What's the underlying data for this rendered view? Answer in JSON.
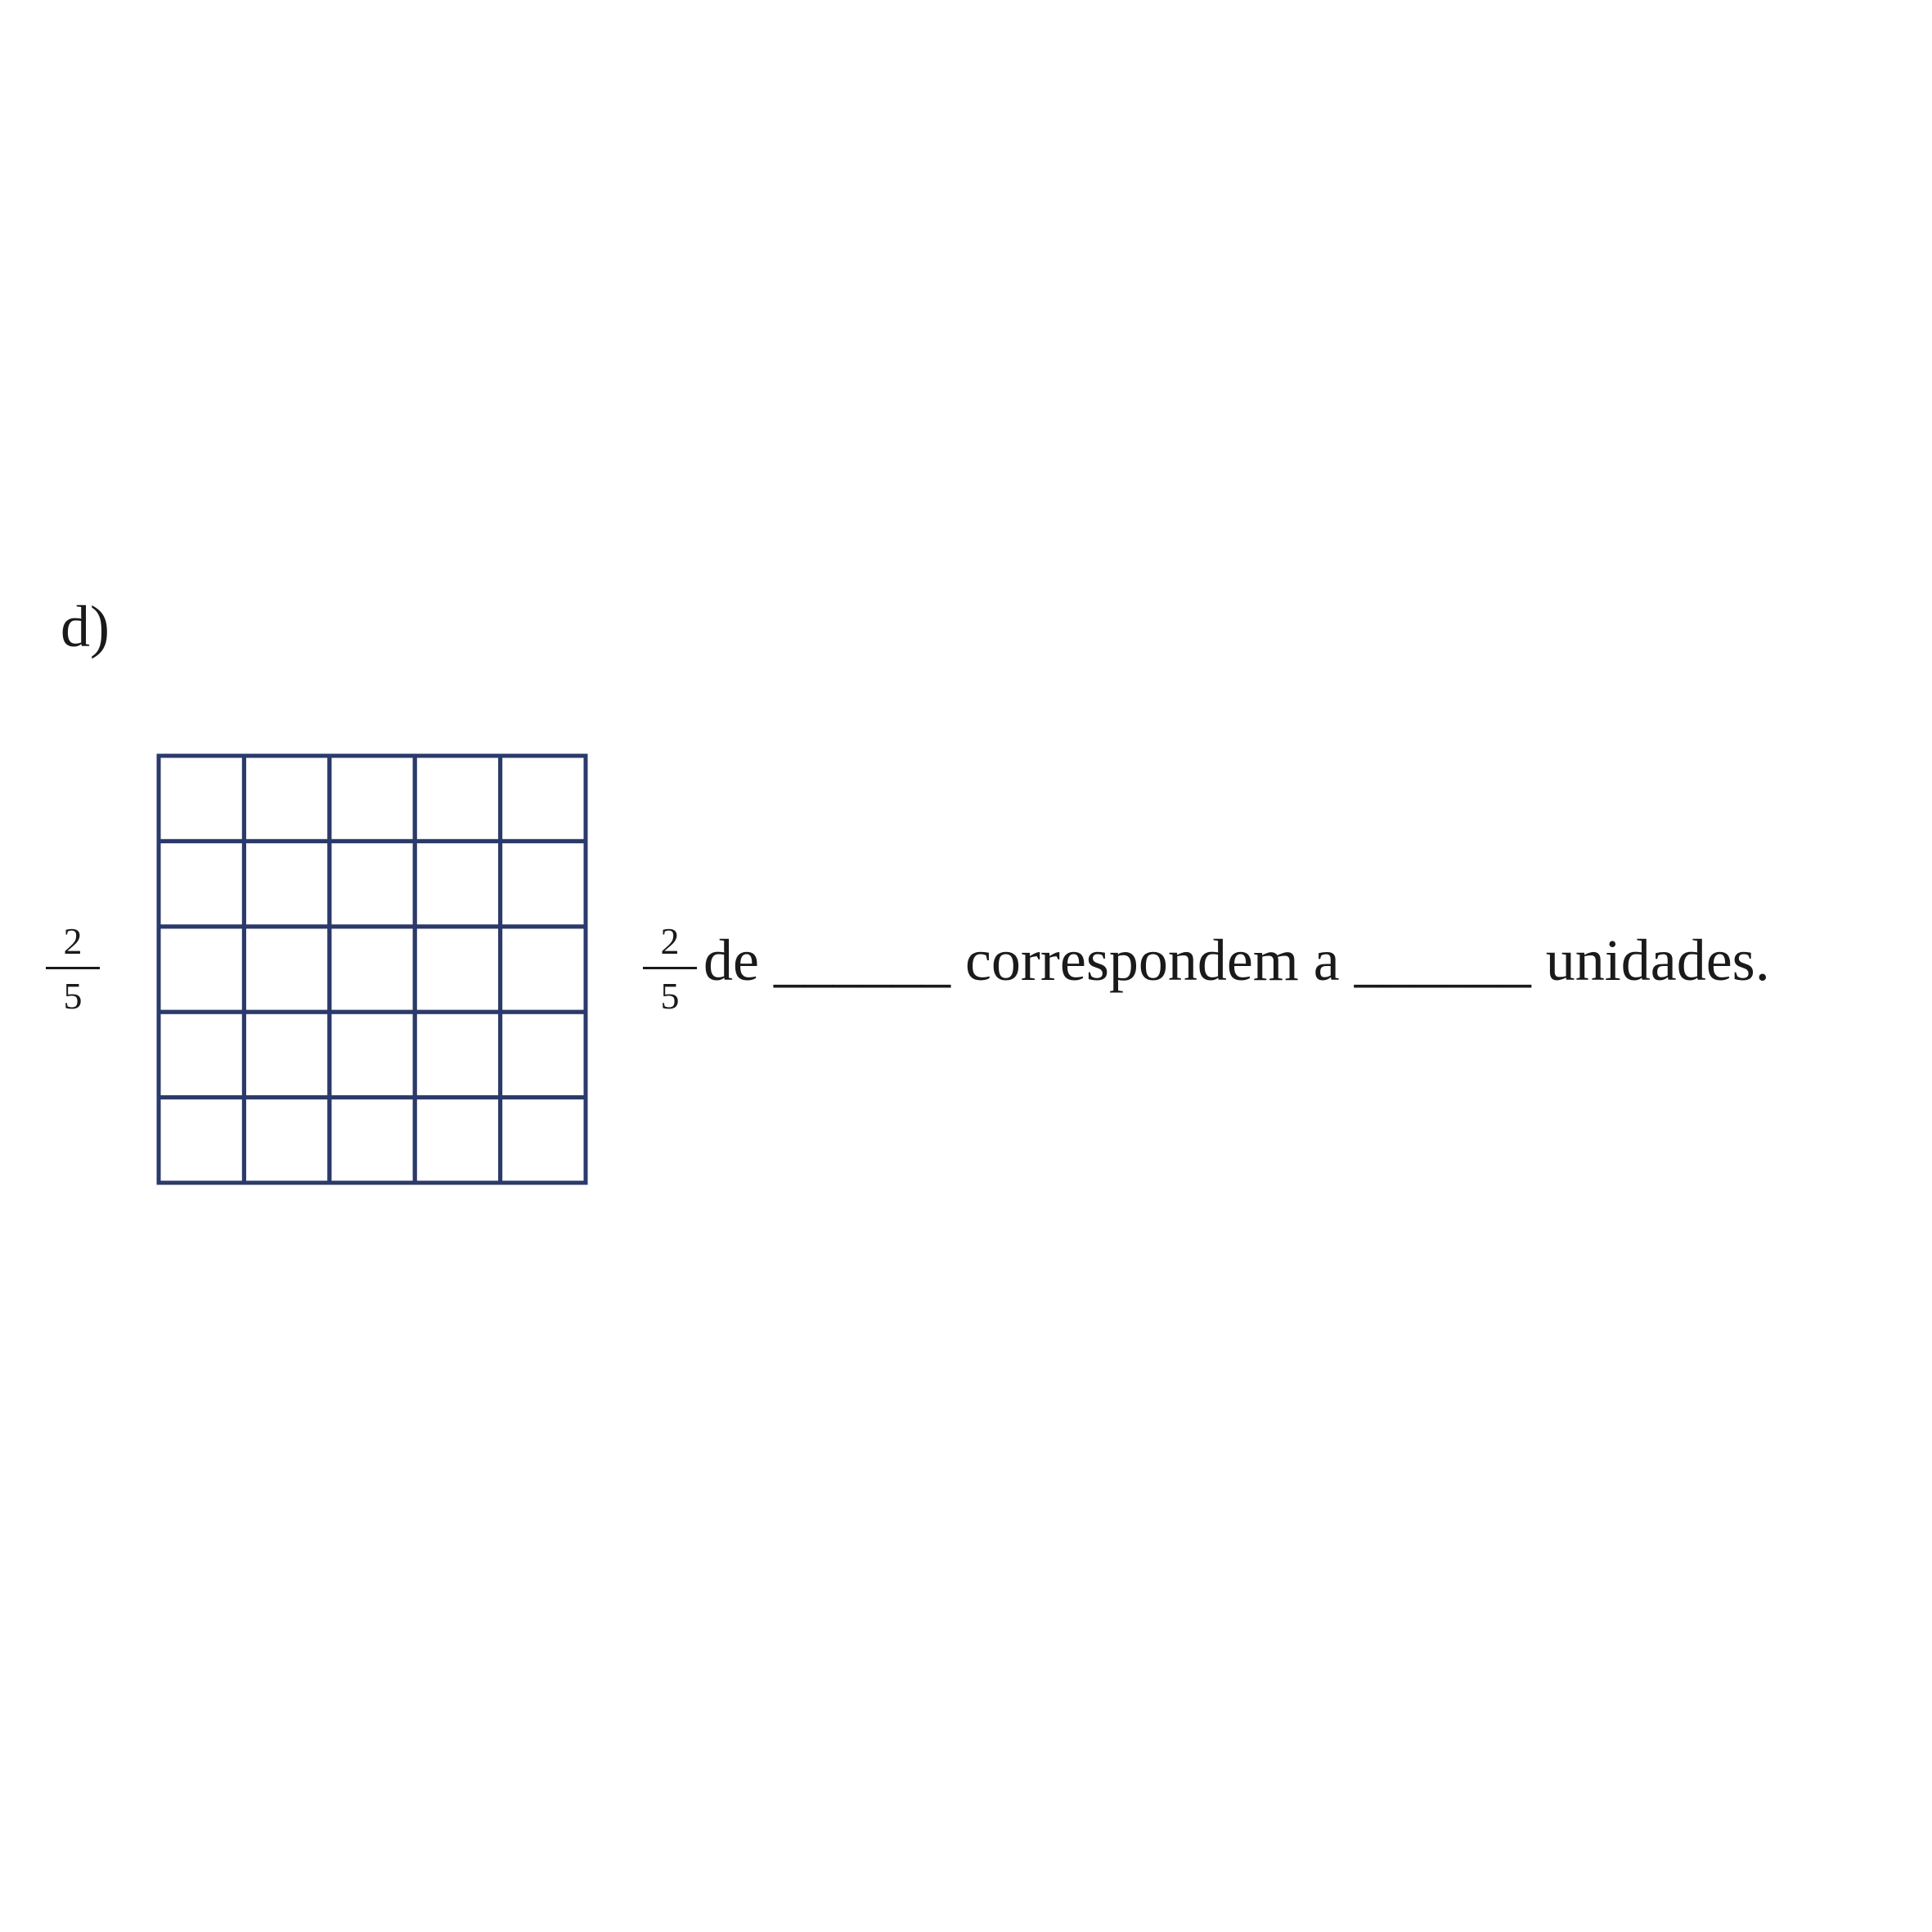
{
  "item_label": "d)",
  "left_fraction": {
    "numerator": "2",
    "denominator": "5"
  },
  "grid": {
    "rows": 5,
    "cols": 5,
    "line_color": "#2b3a6b"
  },
  "sentence": {
    "fraction": {
      "numerator": "2",
      "denominator": "5"
    },
    "text": "de ______ correspondem a ______ unidades."
  }
}
